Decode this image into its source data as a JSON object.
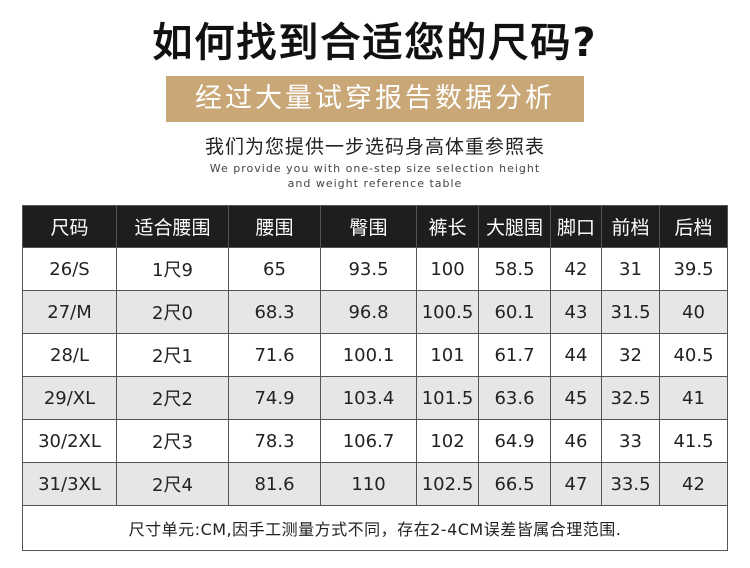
{
  "title": "如何找到合适您的尺码?",
  "banner": "经过大量试穿报告数据分析",
  "subtitle_cn": "我们为您提供一步选码身高体重参照表",
  "subtitle_en_line1": "We provide you with one-step size selection height",
  "subtitle_en_line2": "and weight reference table",
  "table": {
    "headers": [
      "尺码",
      "适合腰围",
      "腰围",
      "臀围",
      "裤长",
      "大腿围",
      "脚口",
      "前档",
      "后档"
    ],
    "rows": [
      [
        "26/S",
        "1尺9",
        "65",
        "93.5",
        "100",
        "58.5",
        "42",
        "31",
        "39.5"
      ],
      [
        "27/M",
        "2尺0",
        "68.3",
        "96.8",
        "100.5",
        "60.1",
        "43",
        "31.5",
        "40"
      ],
      [
        "28/L",
        "2尺1",
        "71.6",
        "100.1",
        "101",
        "61.7",
        "44",
        "32",
        "40.5"
      ],
      [
        "29/XL",
        "2尺2",
        "74.9",
        "103.4",
        "101.5",
        "63.6",
        "45",
        "32.5",
        "41"
      ],
      [
        "30/2XL",
        "2尺3",
        "78.3",
        "106.7",
        "102",
        "64.9",
        "46",
        "33",
        "41.5"
      ],
      [
        "31/3XL",
        "2尺4",
        "81.6",
        "110",
        "102.5",
        "66.5",
        "47",
        "33.5",
        "42"
      ]
    ],
    "note": "尺寸单元:CM,因手工测量方式不同，存在2-4CM误差皆属合理范围."
  }
}
